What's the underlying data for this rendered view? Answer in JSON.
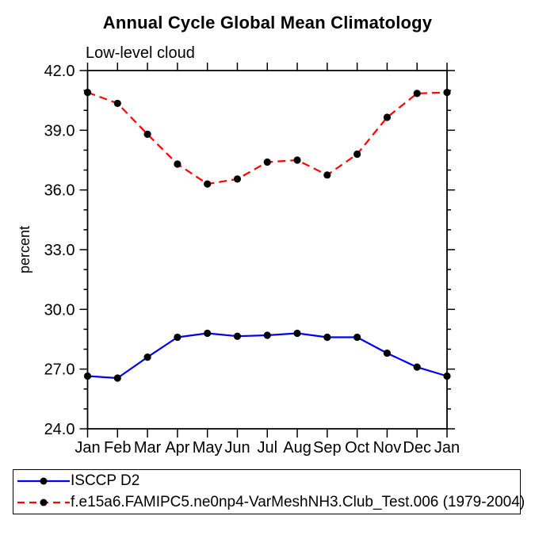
{
  "page": {
    "background": "#ffffff"
  },
  "chart_data": {
    "type": "line",
    "title": "Annual Cycle Global Mean Climatology",
    "subtitle": "Low-level cloud",
    "xlabel": "",
    "ylabel": "percent",
    "x_categories": [
      "Jan",
      "Feb",
      "Mar",
      "Apr",
      "May",
      "Jun",
      "Jul",
      "Aug",
      "Sep",
      "Oct",
      "Nov",
      "Dec",
      "Jan"
    ],
    "ylim": [
      24.0,
      42.0
    ],
    "ytick_interval": 3.0,
    "yminor_interval": 1.0,
    "ytick_labels": [
      "24.0",
      "27.0",
      "30.0",
      "33.0",
      "36.0",
      "39.0",
      "42.0"
    ],
    "grid": false,
    "legend_position": "bottom",
    "axis_color": "#000000",
    "marker_color": "#000000",
    "series": [
      {
        "name": "ISCCP D2",
        "color": "#0000ee",
        "line_style": "solid",
        "marker": "circle",
        "values": [
          26.65,
          26.55,
          27.6,
          28.6,
          28.8,
          28.65,
          28.7,
          28.8,
          28.6,
          28.6,
          27.8,
          27.1,
          26.65
        ]
      },
      {
        "name": "f.e15a6.FAMIPC5.ne0np4-VarMeshNH3.Club_Test.006 (1979-2004)",
        "color": "#ff0000",
        "line_style": "dashed",
        "marker": "circle",
        "values": [
          40.9,
          40.35,
          38.8,
          37.3,
          36.3,
          36.55,
          37.4,
          37.5,
          36.75,
          37.8,
          39.65,
          40.85,
          40.9
        ]
      }
    ]
  }
}
